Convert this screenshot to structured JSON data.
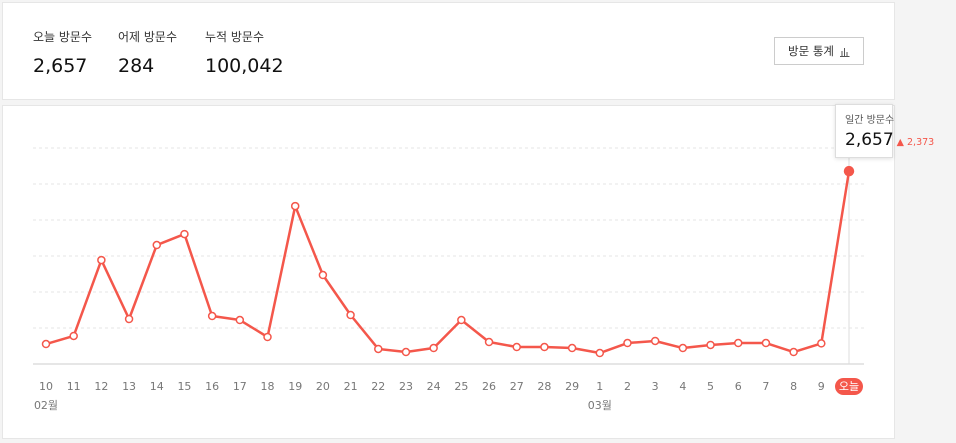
{
  "stats": [
    {
      "label": "오늘 방문수",
      "value": "2,657"
    },
    {
      "label": "어제 방문수",
      "value": "284"
    },
    {
      "label": "누적 방문수",
      "value": "100,042"
    }
  ],
  "button": "방문 통계",
  "tooltip": {
    "title": "일간 방문수",
    "value": "2,657",
    "change": "2,373"
  },
  "chart_data": {
    "type": "line",
    "categories": [
      "10",
      "11",
      "12",
      "13",
      "14",
      "15",
      "16",
      "17",
      "18",
      "19",
      "20",
      "21",
      "22",
      "23",
      "24",
      "25",
      "26",
      "27",
      "28",
      "29",
      "1",
      "2",
      "3",
      "4",
      "5",
      "6",
      "7",
      "8",
      "9",
      "오늘"
    ],
    "month_labels": [
      "02월",
      null,
      null,
      null,
      null,
      null,
      null,
      null,
      null,
      null,
      null,
      null,
      null,
      null,
      null,
      null,
      null,
      null,
      null,
      null,
      "03월",
      null,
      null,
      null,
      null,
      null,
      null,
      null,
      null,
      null
    ],
    "values": [
      275,
      386,
      1432,
      620,
      1639,
      1790,
      661,
      606,
      372,
      2176,
      1226,
      675,
      207,
      165,
      220,
      606,
      303,
      234,
      234,
      220,
      151,
      289,
      317,
      220,
      262,
      289,
      289,
      165,
      284,
      2657
    ],
    "color": "#f4574b",
    "ylim": [
      0,
      2976
    ],
    "yticks": [
      0,
      496,
      992,
      1488,
      1984,
      2480,
      2976
    ],
    "grid": true
  }
}
